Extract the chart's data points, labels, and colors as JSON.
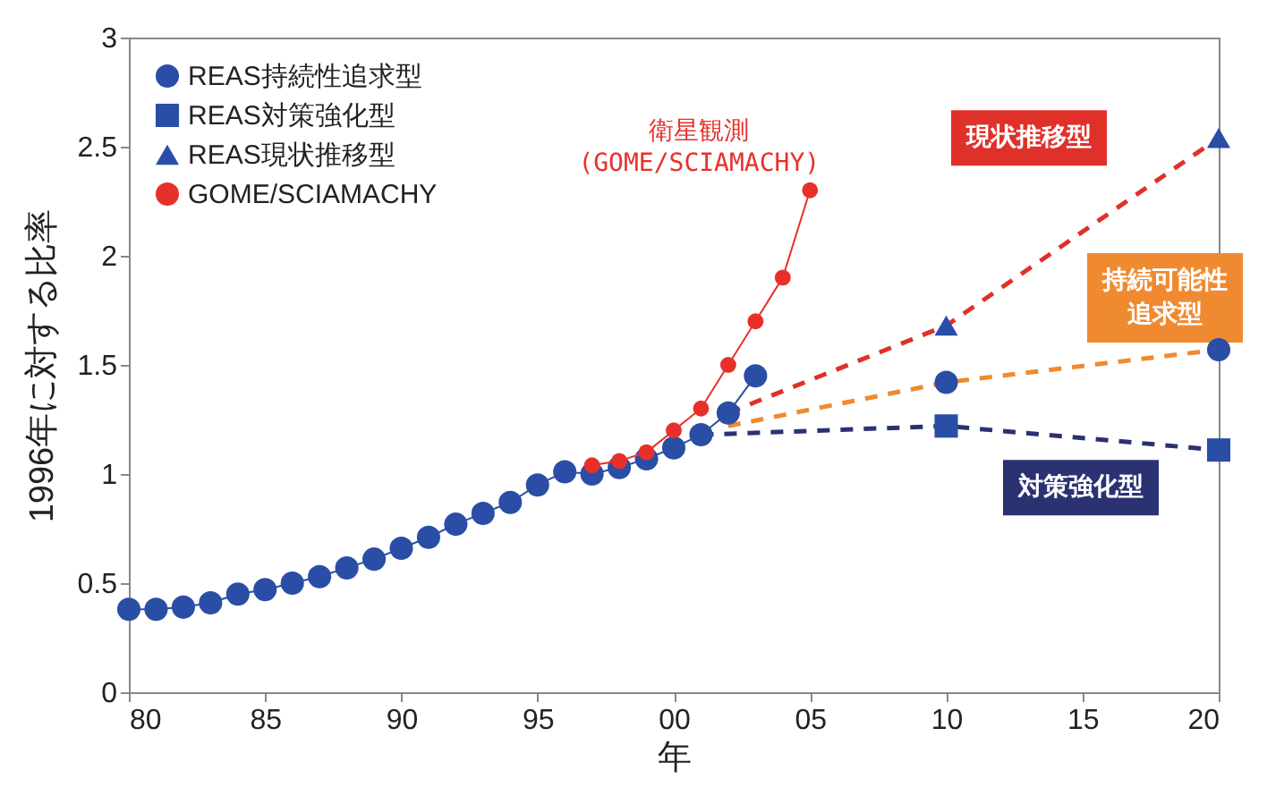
{
  "chart_data": {
    "type": "line",
    "xlabel": "年",
    "ylabel": "1996年に対する比率",
    "xlim": [
      1980,
      2020
    ],
    "xticks": [
      {
        "value": 1980,
        "label": "80"
      },
      {
        "value": 1985,
        "label": "85"
      },
      {
        "value": 1990,
        "label": "90"
      },
      {
        "value": 1995,
        "label": "95"
      },
      {
        "value": 2000,
        "label": "00"
      },
      {
        "value": 2005,
        "label": "05"
      },
      {
        "value": 2010,
        "label": "10"
      },
      {
        "value": 2015,
        "label": "15"
      },
      {
        "value": 2020,
        "label": "20"
      }
    ],
    "ylim": [
      0,
      3
    ],
    "yticks": [
      0,
      0.5,
      1,
      1.5,
      2,
      2.5,
      3
    ],
    "grid": false,
    "legend": "top left",
    "annotations": [
      {
        "text": "衛星観測\n(GOME/SCIAMACHY)",
        "x": 2005,
        "y": 2.3
      }
    ],
    "series": [
      {
        "name": "持続可能性追求型",
        "color": "#f08a30",
        "marker": "none",
        "line_style": "dashed",
        "x": [
          2002,
          2010,
          2020
        ],
        "values": [
          1.22,
          1.42,
          1.57
        ]
      },
      {
        "name": "対策強化型",
        "color": "#2b3272",
        "marker": "none",
        "line_style": "dashed",
        "x": [
          2001,
          2010,
          2020
        ],
        "values": [
          1.18,
          1.22,
          1.11
        ]
      },
      {
        "name": "現状推移型",
        "color": "#e0302a",
        "marker": "none",
        "line_style": "dashed",
        "x": [
          2002,
          2010,
          2020
        ],
        "values": [
          1.28,
          1.68,
          2.54
        ]
      },
      {
        "name": "REAS持続性追求型",
        "color": "#2a4ea6",
        "marker": "circle",
        "line_style": "solid",
        "x": [
          1980,
          1981,
          1982,
          1983,
          1984,
          1985,
          1986,
          1987,
          1988,
          1989,
          1990,
          1991,
          1992,
          1993,
          1994,
          1995,
          1996,
          1997,
          1998,
          1999,
          2000,
          2001,
          2002,
          2003
        ],
        "values": [
          0.38,
          0.38,
          0.39,
          0.41,
          0.45,
          0.47,
          0.5,
          0.53,
          0.57,
          0.61,
          0.66,
          0.71,
          0.77,
          0.82,
          0.87,
          0.95,
          1.01,
          1.0,
          1.03,
          1.07,
          1.12,
          1.18,
          1.28,
          1.45
        ]
      },
      {
        "type": "scatter",
        "color": "#2a4ea6",
        "marker": "circle",
        "x": [
          2010,
          2020
        ],
        "values": [
          1.42,
          1.57
        ]
      },
      {
        "name": "REAS対策強化型",
        "type": "scatter",
        "color": "#2a4ea6",
        "marker": "square",
        "x": [
          2010,
          2020
        ],
        "values": [
          1.22,
          1.11
        ]
      },
      {
        "name": "REAS現状推移型",
        "type": "scatter",
        "color": "#2a4ea6",
        "marker": "triangle",
        "x": [
          2010,
          2020
        ],
        "values": [
          1.68,
          2.54
        ]
      },
      {
        "name": "GOME/SCIAMACHY",
        "color": "#e8302a",
        "marker": "circle",
        "line_style": "solid",
        "x": [
          1997,
          1998,
          1999,
          2000,
          2001,
          2002,
          2003,
          2004,
          2005
        ],
        "values": [
          1.04,
          1.06,
          1.1,
          1.2,
          1.3,
          1.5,
          1.7,
          1.9,
          2.3
        ]
      }
    ]
  }
}
